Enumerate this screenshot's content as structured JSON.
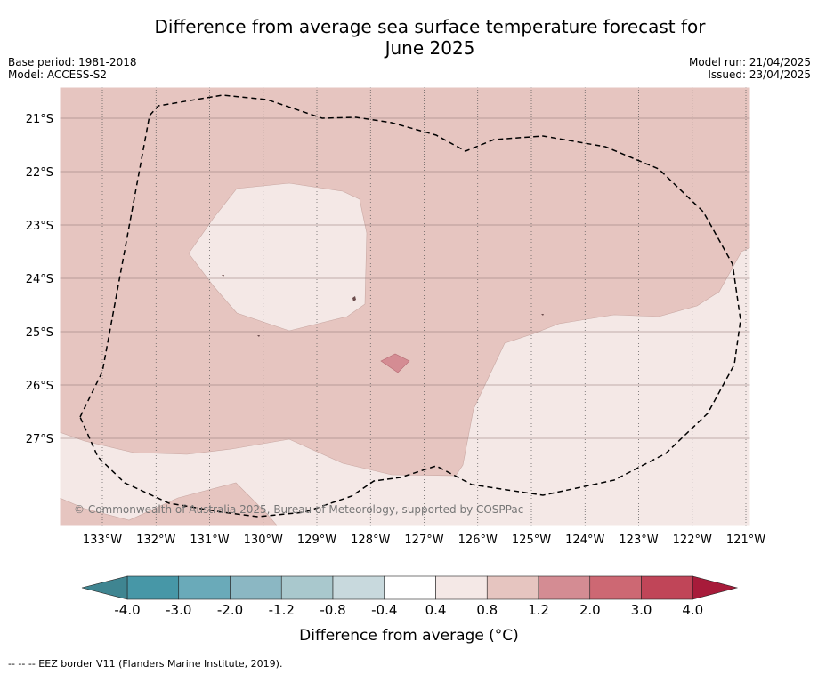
{
  "header": {
    "title_line1": "Difference from average sea surface temperature forecast for",
    "title_line2": "June 2025",
    "base_period": "Base period: 1981-2018",
    "model": "Model: ACCESS-S2",
    "model_run": "Model run: 21/04/2025",
    "issued": "Issued: 23/04/2025"
  },
  "map": {
    "lon_labels": [
      "133°W",
      "132°W",
      "131°W",
      "130°W",
      "129°W",
      "128°W",
      "127°W",
      "126°W",
      "125°W",
      "124°W",
      "123°W",
      "122°W",
      "121°W"
    ],
    "lat_labels": [
      "21°S",
      "22°S",
      "23°S",
      "24°S",
      "25°S",
      "26°S",
      "27°S"
    ],
    "copyright": "© Commonwealth of Australia 2025, Bureau of Meteorology, supported by COSPPac",
    "colors": {
      "band_0_4_to_0_8": "#f4e8e6",
      "band_0_8_to_1_2": "#e6c5c0",
      "band_1_2_to_2_0": "#d48c93"
    }
  },
  "colorbar": {
    "tick_labels": [
      "-4.0",
      "-3.0",
      "-2.0",
      "-1.2",
      "-0.8",
      "-0.4",
      "0.4",
      "0.8",
      "1.2",
      "2.0",
      "3.0",
      "4.0"
    ],
    "colors": [
      "#4797a7",
      "#6aaab9",
      "#8bb7c3",
      "#a9c8cd",
      "#c8d9dd",
      "#ffffff",
      "#f4e8e6",
      "#e6c5c0",
      "#d48c93",
      "#cd6873",
      "#c04558"
    ],
    "under_color": "#3f8591",
    "over_color": "#a71b3a",
    "label": "Difference from average (°C)"
  },
  "footer": {
    "eez_note": "--  --  -- EEZ border V11 (Flanders Marine Institute, 2019)."
  }
}
